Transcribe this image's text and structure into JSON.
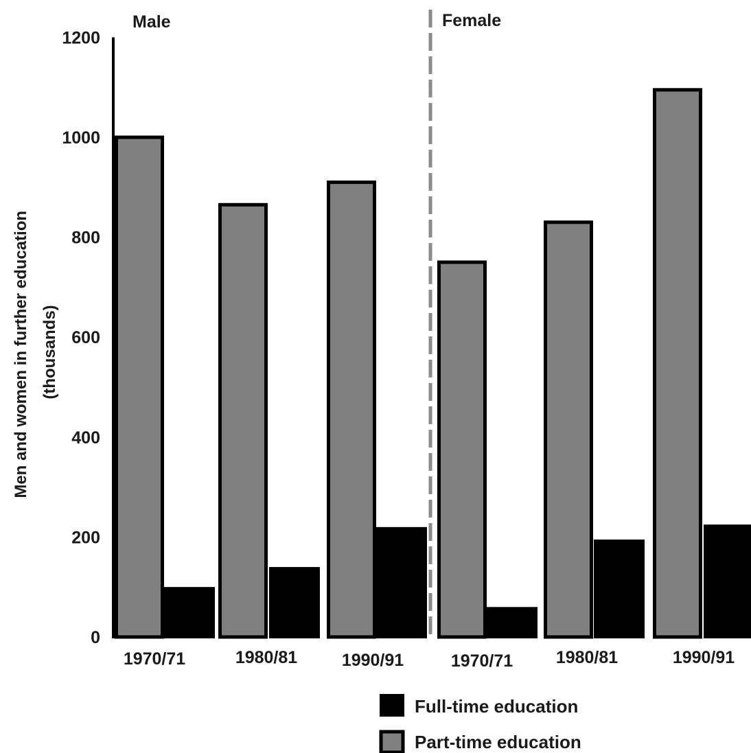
{
  "chart_data": {
    "type": "bar",
    "ylabel": "Men and women in further education (thousands)",
    "ylabel_lines": [
      "Men and women in further education",
      "(thousands)"
    ],
    "ylim": [
      0,
      1200
    ],
    "yticks": [
      0,
      200,
      400,
      600,
      800,
      1000,
      1200
    ],
    "grid": false,
    "legend_position": "bottom-right",
    "groups": [
      {
        "name": "Male",
        "categories": [
          "1970/71",
          "1980/81",
          "1990/91"
        ],
        "series": [
          {
            "name": "Part-time education",
            "values": [
              1000,
              865,
              910
            ]
          },
          {
            "name": "Full-time education",
            "values": [
              100,
              140,
              220
            ]
          }
        ]
      },
      {
        "name": "Female",
        "categories": [
          "1970/71",
          "1980/81",
          "1990/91"
        ],
        "series": [
          {
            "name": "Part-time education",
            "values": [
              750,
              830,
              1095
            ]
          },
          {
            "name": "Full-time education",
            "values": [
              60,
              195,
              225
            ]
          }
        ]
      }
    ],
    "legend": [
      {
        "name": "Full-time education",
        "color": "#000000"
      },
      {
        "name": "Part-time education",
        "color": "#808080"
      }
    ],
    "colors": {
      "Part-time education": "#808080",
      "Full-time education": "#000000",
      "divider": "#8c8c8c"
    }
  }
}
